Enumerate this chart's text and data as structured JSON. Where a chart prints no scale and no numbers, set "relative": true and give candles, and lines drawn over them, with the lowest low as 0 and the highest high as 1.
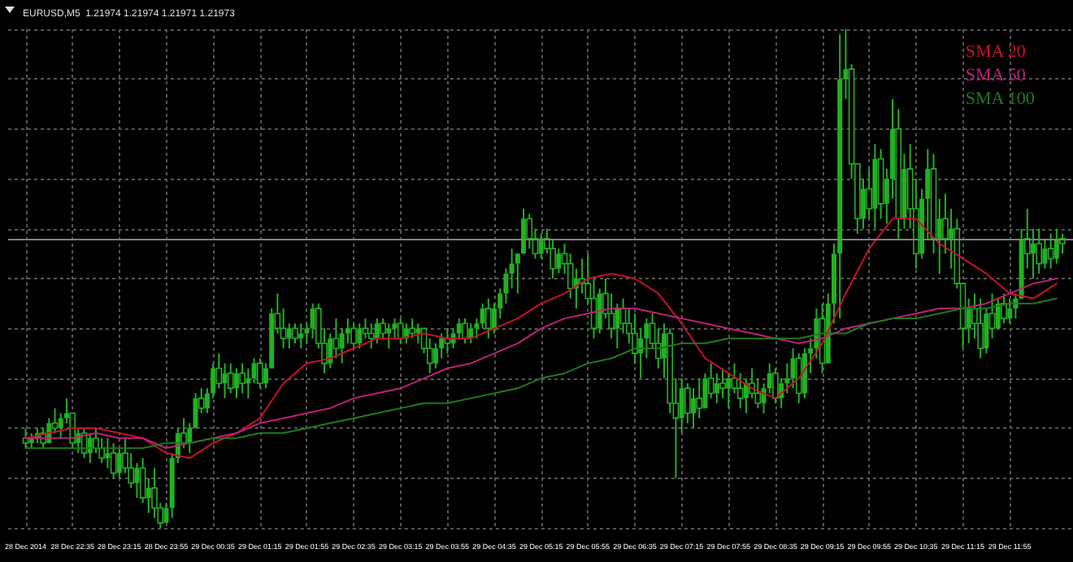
{
  "chart_data": {
    "type": "candlestick",
    "title": "EURUSD,M5  1.21974 1.21974 1.21971 1.21973",
    "relative": true,
    "grid": true,
    "legend": "top right",
    "marker": "none",
    "line_style": "solid",
    "xlim": [
      "2014-12-28T21:40",
      "2014-12-29T12:49"
    ],
    "xticks": [
      {
        "value": "2014-12-28T21:55",
        "label": "28 Dec 2014"
      },
      {
        "value": "2014-12-28T22:35",
        "label": "28 Dec 22:35"
      },
      {
        "value": "2014-12-28T23:15",
        "label": "28 Dec 23:15"
      },
      {
        "value": "2014-12-28T23:55",
        "label": "28 Dec 23:55"
      },
      {
        "value": "2014-12-29T00:35",
        "label": "29 Dec 00:35"
      },
      {
        "value": "2014-12-29T01:15",
        "label": "29 Dec 01:15"
      },
      {
        "value": "2014-12-29T01:55",
        "label": "29 Dec 01:55"
      },
      {
        "value": "2014-12-29T02:35",
        "label": "29 Dec 02:35"
      },
      {
        "value": "2014-12-29T03:15",
        "label": "29 Dec 03:15"
      },
      {
        "value": "2014-12-29T03:55",
        "label": "29 Dec 03:55"
      },
      {
        "value": "2014-12-29T04:35",
        "label": "29 Dec 04:35"
      },
      {
        "value": "2014-12-29T05:15",
        "label": "29 Dec 05:15"
      },
      {
        "value": "2014-12-29T05:55",
        "label": "29 Dec 05:55"
      },
      {
        "value": "2014-12-29T06:35",
        "label": "29 Dec 06:35"
      },
      {
        "value": "2014-12-29T07:15",
        "label": "29 Dec 07:15"
      },
      {
        "value": "2014-12-29T07:55",
        "label": "29 Dec 07:55"
      },
      {
        "value": "2014-12-29T08:35",
        "label": "29 Dec 08:35"
      },
      {
        "value": "2014-12-29T09:15",
        "label": "29 Dec 09:15"
      },
      {
        "value": "2014-12-29T09:55",
        "label": "29 Dec 09:55"
      },
      {
        "value": "2014-12-29T10:35",
        "label": "29 Dec 10:35"
      },
      {
        "value": "2014-12-29T11:15",
        "label": "29 Dec 11:15"
      },
      {
        "value": "2014-12-29T11:55",
        "label": "29 Dec 11:55"
      }
    ],
    "ref_lines": [
      {
        "axis": "y",
        "value": 0.58,
        "color": "#808080"
      }
    ],
    "x": [
      "2014-12-28T21:55",
      "2014-12-28T22:15",
      "2014-12-28T22:35",
      "2014-12-28T22:55",
      "2014-12-28T23:15",
      "2014-12-28T23:35",
      "2014-12-28T23:55",
      "2014-12-29T00:15",
      "2014-12-29T00:35",
      "2014-12-29T00:55",
      "2014-12-29T01:15",
      "2014-12-29T01:35",
      "2014-12-29T01:55",
      "2014-12-29T02:15",
      "2014-12-29T02:35",
      "2014-12-29T02:55",
      "2014-12-29T03:15",
      "2014-12-29T03:35",
      "2014-12-29T03:55",
      "2014-12-29T04:15",
      "2014-12-29T04:35",
      "2014-12-29T04:55",
      "2014-12-29T05:15",
      "2014-12-29T05:35",
      "2014-12-29T05:55",
      "2014-12-29T06:15",
      "2014-12-29T06:35",
      "2014-12-29T06:55",
      "2014-12-29T07:15",
      "2014-12-29T07:35",
      "2014-12-29T07:55",
      "2014-12-29T08:15",
      "2014-12-29T08:35",
      "2014-12-29T08:55",
      "2014-12-29T09:15",
      "2014-12-29T09:35",
      "2014-12-29T09:55",
      "2014-12-29T10:15",
      "2014-12-29T10:35",
      "2014-12-29T10:55",
      "2014-12-29T11:15",
      "2014-12-29T11:35",
      "2014-12-29T11:55",
      "2014-12-29T12:15",
      "2014-12-29T12:35"
    ],
    "series": [
      {
        "color": "#22b022",
        "x": [
          "2014-12-28T21:55",
          "2014-12-28T22:00",
          "2014-12-28T22:05",
          "2014-12-28T22:10",
          "2014-12-28T22:15",
          "2014-12-28T22:20",
          "2014-12-28T22:25",
          "2014-12-28T22:30",
          "2014-12-28T22:35",
          "2014-12-28T22:40",
          "2014-12-28T22:45",
          "2014-12-28T22:50",
          "2014-12-28T22:55",
          "2014-12-28T23:00",
          "2014-12-28T23:05",
          "2014-12-28T23:10",
          "2014-12-28T23:15",
          "2014-12-28T23:20",
          "2014-12-28T23:25",
          "2014-12-28T23:30",
          "2014-12-28T23:35",
          "2014-12-28T23:40",
          "2014-12-28T23:45",
          "2014-12-28T23:50",
          "2014-12-28T23:55",
          "2014-12-29T00:00",
          "2014-12-29T00:05",
          "2014-12-29T00:10",
          "2014-12-29T00:15",
          "2014-12-29T00:20",
          "2014-12-29T00:25",
          "2014-12-29T00:30",
          "2014-12-29T00:35",
          "2014-12-29T00:40",
          "2014-12-29T00:45",
          "2014-12-29T00:50",
          "2014-12-29T00:55",
          "2014-12-29T01:00",
          "2014-12-29T01:05",
          "2014-12-29T01:10",
          "2014-12-29T01:15",
          "2014-12-29T01:20",
          "2014-12-29T01:25",
          "2014-12-29T01:30",
          "2014-12-29T01:35",
          "2014-12-29T01:40",
          "2014-12-29T01:45",
          "2014-12-29T01:50",
          "2014-12-29T01:55",
          "2014-12-29T02:00",
          "2014-12-29T02:05",
          "2014-12-29T02:10",
          "2014-12-29T02:15",
          "2014-12-29T02:20",
          "2014-12-29T02:25",
          "2014-12-29T02:30",
          "2014-12-29T02:35",
          "2014-12-29T02:40",
          "2014-12-29T02:45",
          "2014-12-29T02:50",
          "2014-12-29T02:55",
          "2014-12-29T03:00",
          "2014-12-29T03:05",
          "2014-12-29T03:10",
          "2014-12-29T03:15",
          "2014-12-29T03:20",
          "2014-12-29T03:25",
          "2014-12-29T03:30",
          "2014-12-29T03:35",
          "2014-12-29T03:40",
          "2014-12-29T03:45",
          "2014-12-29T03:50",
          "2014-12-29T03:55",
          "2014-12-29T04:00",
          "2014-12-29T04:05",
          "2014-12-29T04:10",
          "2014-12-29T04:15",
          "2014-12-29T04:20",
          "2014-12-29T04:25",
          "2014-12-29T04:30",
          "2014-12-29T04:35",
          "2014-12-29T04:40",
          "2014-12-29T04:45",
          "2014-12-29T04:50",
          "2014-12-29T04:55",
          "2014-12-29T05:00",
          "2014-12-29T05:05",
          "2014-12-29T05:10",
          "2014-12-29T05:15",
          "2014-12-29T05:20",
          "2014-12-29T05:25",
          "2014-12-29T05:30",
          "2014-12-29T05:35",
          "2014-12-29T05:40",
          "2014-12-29T05:45",
          "2014-12-29T05:50",
          "2014-12-29T05:55",
          "2014-12-29T06:00",
          "2014-12-29T06:05",
          "2014-12-29T06:10",
          "2014-12-29T06:15",
          "2014-12-29T06:20",
          "2014-12-29T06:25",
          "2014-12-29T06:30",
          "2014-12-29T06:35",
          "2014-12-29T06:40",
          "2014-12-29T06:45",
          "2014-12-29T06:50",
          "2014-12-29T06:55",
          "2014-12-29T07:00",
          "2014-12-29T07:05",
          "2014-12-29T07:10",
          "2014-12-29T07:15",
          "2014-12-29T07:20",
          "2014-12-29T07:25",
          "2014-12-29T07:30",
          "2014-12-29T07:35",
          "2014-12-29T07:40",
          "2014-12-29T07:45",
          "2014-12-29T07:50",
          "2014-12-29T07:55",
          "2014-12-29T08:00",
          "2014-12-29T08:05",
          "2014-12-29T08:10",
          "2014-12-29T08:15",
          "2014-12-29T08:20",
          "2014-12-29T08:25",
          "2014-12-29T08:30",
          "2014-12-29T08:35",
          "2014-12-29T08:40",
          "2014-12-29T08:45",
          "2014-12-29T08:50",
          "2014-12-29T08:55",
          "2014-12-29T09:00",
          "2014-12-29T09:05",
          "2014-12-29T09:10",
          "2014-12-29T09:15",
          "2014-12-29T09:20",
          "2014-12-29T09:25",
          "2014-12-29T09:30",
          "2014-12-29T09:35",
          "2014-12-29T09:40",
          "2014-12-29T09:45",
          "2014-12-29T09:50",
          "2014-12-29T09:55",
          "2014-12-29T10:00",
          "2014-12-29T10:05",
          "2014-12-29T10:10",
          "2014-12-29T10:15",
          "2014-12-29T10:20",
          "2014-12-29T10:25",
          "2014-12-29T10:30",
          "2014-12-29T10:35",
          "2014-12-29T10:40",
          "2014-12-29T10:45",
          "2014-12-29T10:50",
          "2014-12-29T10:55",
          "2014-12-29T11:00",
          "2014-12-29T11:05",
          "2014-12-29T11:10",
          "2014-12-29T11:15",
          "2014-12-29T11:20",
          "2014-12-29T11:25",
          "2014-12-29T11:30",
          "2014-12-29T11:35",
          "2014-12-29T11:40",
          "2014-12-29T11:45",
          "2014-12-29T11:50",
          "2014-12-29T11:55",
          "2014-12-29T12:00",
          "2014-12-29T12:05",
          "2014-12-29T12:10",
          "2014-12-29T12:15",
          "2014-12-29T12:20",
          "2014-12-29T12:25",
          "2014-12-29T12:30",
          "2014-12-29T12:35",
          "2014-12-29T12:40"
        ],
        "ohlc": [
          [
            0.18,
            0.2,
            0.16,
            0.17
          ],
          [
            0.17,
            0.19,
            0.16,
            0.18
          ],
          [
            0.18,
            0.2,
            0.17,
            0.19
          ],
          [
            0.19,
            0.2,
            0.16,
            0.17
          ],
          [
            0.17,
            0.22,
            0.17,
            0.21
          ],
          [
            0.21,
            0.24,
            0.19,
            0.2
          ],
          [
            0.2,
            0.23,
            0.18,
            0.22
          ],
          [
            0.22,
            0.26,
            0.21,
            0.23
          ],
          [
            0.23,
            0.23,
            0.16,
            0.17
          ],
          [
            0.17,
            0.2,
            0.15,
            0.19
          ],
          [
            0.19,
            0.2,
            0.14,
            0.15
          ],
          [
            0.15,
            0.19,
            0.13,
            0.18
          ],
          [
            0.18,
            0.2,
            0.15,
            0.16
          ],
          [
            0.16,
            0.18,
            0.13,
            0.14
          ],
          [
            0.14,
            0.18,
            0.12,
            0.15
          ],
          [
            0.15,
            0.17,
            0.1,
            0.11
          ],
          [
            0.11,
            0.16,
            0.1,
            0.15
          ],
          [
            0.15,
            0.18,
            0.11,
            0.12
          ],
          [
            0.12,
            0.15,
            0.08,
            0.09
          ],
          [
            0.09,
            0.13,
            0.06,
            0.12
          ],
          [
            0.12,
            0.14,
            0.05,
            0.06
          ],
          [
            0.06,
            0.1,
            0.03,
            0.08
          ],
          [
            0.08,
            0.12,
            0.02,
            0.04
          ],
          [
            0.04,
            0.05,
            0,
            0.01
          ],
          [
            0.01,
            0.05,
            0.01,
            0.04
          ],
          [
            0.04,
            0.15,
            0.02,
            0.14
          ],
          [
            0.14,
            0.2,
            0.13,
            0.19
          ],
          [
            0.19,
            0.22,
            0.16,
            0.17
          ],
          [
            0.17,
            0.21,
            0.15,
            0.2
          ],
          [
            0.2,
            0.27,
            0.2,
            0.26
          ],
          [
            0.26,
            0.28,
            0.23,
            0.24
          ],
          [
            0.24,
            0.28,
            0.23,
            0.27
          ],
          [
            0.27,
            0.33,
            0.26,
            0.32
          ],
          [
            0.32,
            0.35,
            0.28,
            0.29
          ],
          [
            0.29,
            0.33,
            0.26,
            0.31
          ],
          [
            0.31,
            0.33,
            0.27,
            0.28
          ],
          [
            0.28,
            0.32,
            0.26,
            0.31
          ],
          [
            0.31,
            0.33,
            0.27,
            0.29
          ],
          [
            0.29,
            0.32,
            0.26,
            0.3
          ],
          [
            0.3,
            0.34,
            0.29,
            0.33
          ],
          [
            0.33,
            0.34,
            0.28,
            0.29
          ],
          [
            0.29,
            0.33,
            0.28,
            0.32
          ],
          [
            0.32,
            0.44,
            0.32,
            0.43
          ],
          [
            0.43,
            0.47,
            0.39,
            0.4
          ],
          [
            0.4,
            0.44,
            0.36,
            0.38
          ],
          [
            0.38,
            0.41,
            0.36,
            0.4
          ],
          [
            0.4,
            0.41,
            0.37,
            0.38
          ],
          [
            0.38,
            0.41,
            0.36,
            0.39
          ],
          [
            0.39,
            0.41,
            0.37,
            0.4
          ],
          [
            0.4,
            0.45,
            0.38,
            0.44
          ],
          [
            0.44,
            0.45,
            0.36,
            0.37
          ],
          [
            0.37,
            0.4,
            0.31,
            0.33
          ],
          [
            0.33,
            0.39,
            0.32,
            0.38
          ],
          [
            0.38,
            0.42,
            0.34,
            0.36
          ],
          [
            0.36,
            0.4,
            0.33,
            0.39
          ],
          [
            0.39,
            0.42,
            0.37,
            0.4
          ],
          [
            0.4,
            0.41,
            0.36,
            0.37
          ],
          [
            0.37,
            0.41,
            0.36,
            0.4
          ],
          [
            0.4,
            0.42,
            0.38,
            0.39
          ],
          [
            0.39,
            0.41,
            0.36,
            0.38
          ],
          [
            0.38,
            0.42,
            0.37,
            0.41
          ],
          [
            0.41,
            0.42,
            0.38,
            0.39
          ],
          [
            0.39,
            0.41,
            0.36,
            0.4
          ],
          [
            0.4,
            0.42,
            0.38,
            0.41
          ],
          [
            0.41,
            0.42,
            0.37,
            0.38
          ],
          [
            0.38,
            0.41,
            0.37,
            0.4
          ],
          [
            0.4,
            0.42,
            0.38,
            0.39
          ],
          [
            0.39,
            0.41,
            0.37,
            0.4
          ],
          [
            0.4,
            0.4,
            0.35,
            0.36
          ],
          [
            0.36,
            0.38,
            0.31,
            0.33
          ],
          [
            0.33,
            0.37,
            0.32,
            0.36
          ],
          [
            0.36,
            0.39,
            0.34,
            0.38
          ],
          [
            0.38,
            0.4,
            0.35,
            0.37
          ],
          [
            0.37,
            0.4,
            0.36,
            0.39
          ],
          [
            0.39,
            0.42,
            0.38,
            0.41
          ],
          [
            0.41,
            0.42,
            0.37,
            0.38
          ],
          [
            0.38,
            0.41,
            0.37,
            0.4
          ],
          [
            0.4,
            0.42,
            0.38,
            0.41
          ],
          [
            0.41,
            0.45,
            0.4,
            0.44
          ],
          [
            0.44,
            0.46,
            0.38,
            0.4
          ],
          [
            0.4,
            0.45,
            0.39,
            0.44
          ],
          [
            0.44,
            0.48,
            0.42,
            0.47
          ],
          [
            0.47,
            0.52,
            0.45,
            0.51
          ],
          [
            0.51,
            0.56,
            0.48,
            0.53
          ],
          [
            0.53,
            0.55,
            0.47,
            0.55
          ],
          [
            0.55,
            0.64,
            0.55,
            0.62
          ],
          [
            0.62,
            0.63,
            0.56,
            0.58
          ],
          [
            0.58,
            0.6,
            0.54,
            0.55
          ],
          [
            0.55,
            0.59,
            0.54,
            0.58
          ],
          [
            0.58,
            0.6,
            0.55,
            0.56
          ],
          [
            0.56,
            0.58,
            0.5,
            0.52
          ],
          [
            0.52,
            0.56,
            0.51,
            0.55
          ],
          [
            0.55,
            0.57,
            0.51,
            0.53
          ],
          [
            0.53,
            0.55,
            0.46,
            0.48
          ],
          [
            0.48,
            0.52,
            0.44,
            0.5
          ],
          [
            0.5,
            0.54,
            0.47,
            0.49
          ],
          [
            0.49,
            0.55,
            0.45,
            0.46
          ],
          [
            0.46,
            0.5,
            0.38,
            0.4
          ],
          [
            0.4,
            0.48,
            0.39,
            0.47
          ],
          [
            0.47,
            0.5,
            0.42,
            0.43
          ],
          [
            0.43,
            0.47,
            0.38,
            0.4
          ],
          [
            0.4,
            0.45,
            0.36,
            0.44
          ],
          [
            0.44,
            0.46,
            0.39,
            0.41
          ],
          [
            0.41,
            0.44,
            0.37,
            0.39
          ],
          [
            0.39,
            0.43,
            0.33,
            0.35
          ],
          [
            0.35,
            0.4,
            0.3,
            0.38
          ],
          [
            0.38,
            0.42,
            0.34,
            0.41
          ],
          [
            0.41,
            0.43,
            0.36,
            0.37
          ],
          [
            0.37,
            0.4,
            0.32,
            0.34
          ],
          [
            0.34,
            0.41,
            0.3,
            0.39
          ],
          [
            0.39,
            0.4,
            0.23,
            0.25
          ],
          [
            0.25,
            0.3,
            0.1,
            0.22
          ],
          [
            0.22,
            0.3,
            0.19,
            0.28
          ],
          [
            0.28,
            0.29,
            0.21,
            0.23
          ],
          [
            0.23,
            0.28,
            0.2,
            0.26
          ],
          [
            0.26,
            0.3,
            0.22,
            0.24
          ],
          [
            0.24,
            0.31,
            0.24,
            0.3
          ],
          [
            0.3,
            0.33,
            0.26,
            0.27
          ],
          [
            0.27,
            0.31,
            0.25,
            0.29
          ],
          [
            0.29,
            0.32,
            0.26,
            0.28
          ],
          [
            0.28,
            0.31,
            0.24,
            0.3
          ],
          [
            0.3,
            0.33,
            0.27,
            0.28
          ],
          [
            0.28,
            0.31,
            0.24,
            0.26
          ],
          [
            0.26,
            0.3,
            0.23,
            0.29
          ],
          [
            0.29,
            0.32,
            0.26,
            0.27
          ],
          [
            0.27,
            0.3,
            0.24,
            0.25
          ],
          [
            0.25,
            0.29,
            0.23,
            0.28
          ],
          [
            0.28,
            0.33,
            0.27,
            0.31
          ],
          [
            0.31,
            0.32,
            0.25,
            0.26
          ],
          [
            0.26,
            0.3,
            0.24,
            0.29
          ],
          [
            0.29,
            0.33,
            0.27,
            0.3
          ],
          [
            0.3,
            0.36,
            0.28,
            0.34
          ],
          [
            0.34,
            0.35,
            0.25,
            0.27
          ],
          [
            0.27,
            0.36,
            0.26,
            0.35
          ],
          [
            0.35,
            0.38,
            0.31,
            0.36
          ],
          [
            0.36,
            0.44,
            0.34,
            0.42
          ],
          [
            0.42,
            0.45,
            0.31,
            0.33
          ],
          [
            0.33,
            0.47,
            0.33,
            0.45
          ],
          [
            0.45,
            0.57,
            0.41,
            0.55
          ],
          [
            0.55,
            0.99,
            0.42,
            0.9
          ],
          [
            0.9,
            1,
            0.86,
            0.92
          ],
          [
            0.92,
            0.93,
            0.7,
            0.73
          ],
          [
            0.73,
            0.73,
            0.59,
            0.62
          ],
          [
            0.62,
            0.7,
            0.6,
            0.68
          ],
          [
            0.68,
            0.72,
            0.62,
            0.64
          ],
          [
            0.64,
            0.77,
            0.6,
            0.74
          ],
          [
            0.74,
            0.76,
            0.62,
            0.65
          ],
          [
            0.65,
            0.72,
            0.61,
            0.7
          ],
          [
            0.7,
            0.86,
            0.66,
            0.8
          ],
          [
            0.8,
            0.84,
            0.58,
            0.62
          ],
          [
            0.62,
            0.75,
            0.6,
            0.72
          ],
          [
            0.72,
            0.77,
            0.6,
            0.64
          ],
          [
            0.64,
            0.7,
            0.52,
            0.55
          ],
          [
            0.55,
            0.68,
            0.54,
            0.66
          ],
          [
            0.66,
            0.76,
            0.58,
            0.72
          ],
          [
            0.72,
            0.75,
            0.55,
            0.58
          ],
          [
            0.58,
            0.66,
            0.51,
            0.62
          ],
          [
            0.62,
            0.67,
            0.55,
            0.58
          ],
          [
            0.58,
            0.64,
            0.52,
            0.6
          ],
          [
            0.6,
            0.62,
            0.48,
            0.49
          ],
          [
            0.49,
            0.49,
            0.36,
            0.4
          ],
          [
            0.4,
            0.46,
            0.37,
            0.44
          ],
          [
            0.44,
            0.47,
            0.38,
            0.41
          ],
          [
            0.41,
            0.46,
            0.34,
            0.36
          ],
          [
            0.36,
            0.44,
            0.35,
            0.43
          ],
          [
            0.43,
            0.47,
            0.38,
            0.4
          ],
          [
            0.4,
            0.46,
            0.4,
            0.45
          ],
          [
            0.45,
            0.47,
            0.41,
            0.42
          ],
          [
            0.42,
            0.46,
            0.41,
            0.44
          ],
          [
            0.44,
            0.47,
            0.42,
            0.46
          ],
          [
            0.46,
            0.6,
            0.46,
            0.58
          ],
          [
            0.58,
            0.64,
            0.52,
            0.55
          ],
          [
            0.55,
            0.6,
            0.5,
            0.57
          ],
          [
            0.57,
            0.6,
            0.51,
            0.53
          ],
          [
            0.53,
            0.58,
            0.52,
            0.56
          ],
          [
            0.56,
            0.59,
            0.52,
            0.54
          ],
          [
            0.54,
            0.6,
            0.53,
            0.58
          ],
          [
            0.58,
            0.59,
            0.55,
            0.57
          ]
        ]
      },
      {
        "type": "line",
        "name": "SMA 20",
        "color": "#c8102e",
        "values": [
          0.18,
          0.19,
          0.2,
          0.2,
          0.19,
          0.18,
          0.15,
          0.14,
          0.17,
          0.19,
          0.22,
          0.29,
          0.33,
          0.34,
          0.36,
          0.38,
          0.38,
          0.39,
          0.38,
          0.38,
          0.4,
          0.42,
          0.45,
          0.47,
          0.5,
          0.51,
          0.5,
          0.47,
          0.41,
          0.34,
          0.31,
          0.28,
          0.26,
          0.3,
          0.37,
          0.47,
          0.56,
          0.62,
          0.62,
          0.57,
          0.54,
          0.51,
          0.47,
          0.46,
          0.49
        ]
      },
      {
        "type": "line",
        "name": "SMA 50",
        "color": "#c0207a",
        "values": [
          0.18,
          0.18,
          0.18,
          0.19,
          0.18,
          0.18,
          0.16,
          0.17,
          0.18,
          0.19,
          0.21,
          0.22,
          0.23,
          0.24,
          0.26,
          0.27,
          0.28,
          0.3,
          0.32,
          0.33,
          0.35,
          0.37,
          0.4,
          0.42,
          0.43,
          0.44,
          0.44,
          0.43,
          0.42,
          0.41,
          0.4,
          0.39,
          0.38,
          0.37,
          0.38,
          0.4,
          0.41,
          0.42,
          0.43,
          0.44,
          0.44,
          0.45,
          0.47,
          0.49,
          0.5
        ]
      },
      {
        "type": "line",
        "name": "SMA 100",
        "color": "#1f7a1f",
        "values": [
          0.16,
          0.16,
          0.16,
          0.16,
          0.16,
          0.16,
          0.17,
          0.17,
          0.18,
          0.18,
          0.19,
          0.19,
          0.2,
          0.21,
          0.22,
          0.23,
          0.24,
          0.25,
          0.25,
          0.26,
          0.27,
          0.28,
          0.3,
          0.31,
          0.33,
          0.34,
          0.36,
          0.36,
          0.37,
          0.37,
          0.38,
          0.38,
          0.38,
          0.38,
          0.39,
          0.39,
          0.41,
          0.42,
          0.42,
          0.43,
          0.44,
          0.44,
          0.45,
          0.45,
          0.46
        ]
      }
    ]
  }
}
